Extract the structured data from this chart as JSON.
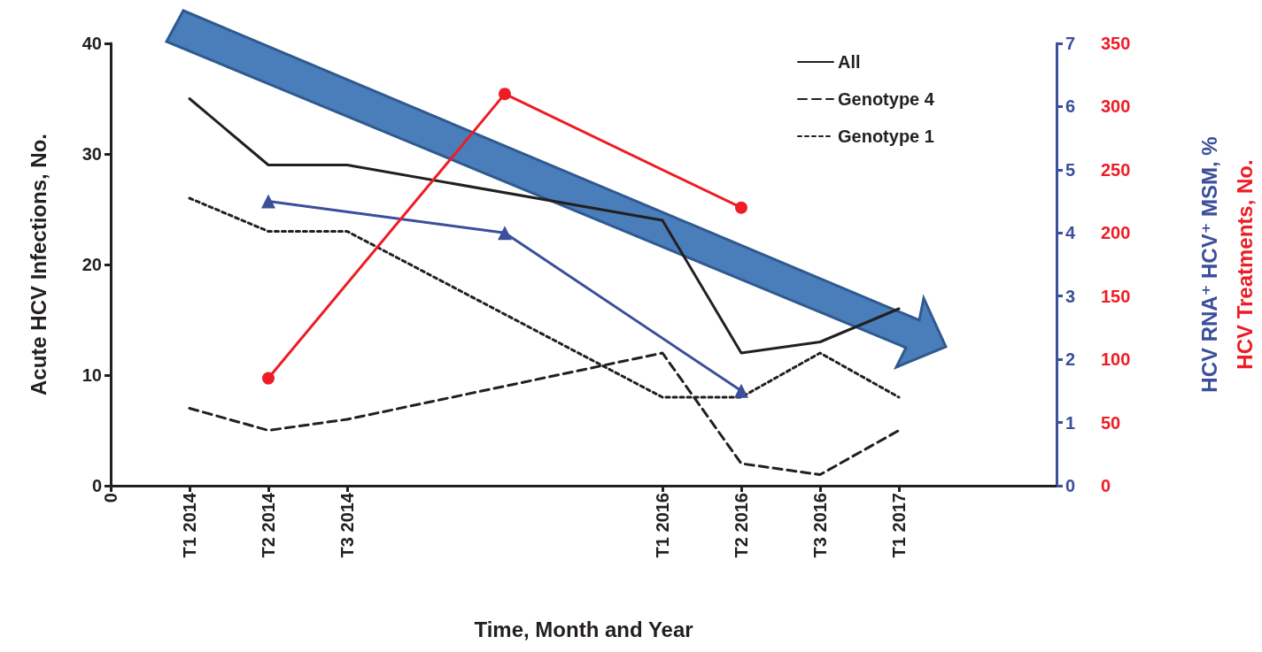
{
  "chart_data": {
    "type": "line",
    "xlabel": "Time, Month and Year",
    "ylabel": "Acute HCV Infections, No.",
    "y2label": "HCV RNA⁺ HCV⁺ MSM, %",
    "y3label": "HCV Treatments, No.",
    "categories": [
      "0",
      "T1 2014",
      "T2 2014",
      "T3 2014",
      null,
      null,
      null,
      "T1 2016",
      "T2 2016",
      "T3 2016",
      "T1 2017",
      null,
      null
    ],
    "ylim": [
      0,
      40
    ],
    "yticks": [
      0,
      10,
      20,
      30,
      40
    ],
    "y2lim": [
      0,
      7
    ],
    "y2ticks": [
      0,
      1,
      2,
      3,
      4,
      5,
      6,
      7
    ],
    "y3lim": [
      0,
      350
    ],
    "y3ticks": [
      0,
      50,
      100,
      150,
      200,
      250,
      300,
      350
    ],
    "grid": false,
    "legend": "top right",
    "series": [
      {
        "name": "All",
        "color": "#231f20",
        "line_style": "solid",
        "marker": "none",
        "values": [
          null,
          35,
          29,
          29,
          null,
          null,
          null,
          24,
          12,
          13,
          16,
          null,
          null
        ]
      },
      {
        "name": "Genotype 4",
        "color": "#231f20",
        "line_style": "dashed",
        "marker": "none",
        "values": [
          null,
          7,
          5,
          6,
          null,
          null,
          null,
          12,
          2,
          1,
          5,
          null,
          null
        ]
      },
      {
        "name": "Genotype 1",
        "color": "#231f20",
        "line_style": "dotted",
        "marker": "none",
        "values": [
          null,
          26,
          23,
          23,
          null,
          null,
          null,
          8,
          8,
          12,
          8,
          null,
          null
        ]
      },
      {
        "color": "#3b4f9a",
        "line_style": "solid",
        "marker": "triangle",
        "axis": "y2",
        "values": [
          null,
          null,
          4.5,
          null,
          null,
          4.0,
          null,
          null,
          1.5,
          null,
          null,
          null,
          null
        ]
      },
      {
        "color": "#ee1c25",
        "line_style": "solid",
        "marker": "circle",
        "axis": "y3",
        "values": [
          null,
          null,
          85,
          null,
          null,
          310,
          null,
          null,
          220,
          null,
          null,
          null,
          null
        ]
      }
    ]
  }
}
